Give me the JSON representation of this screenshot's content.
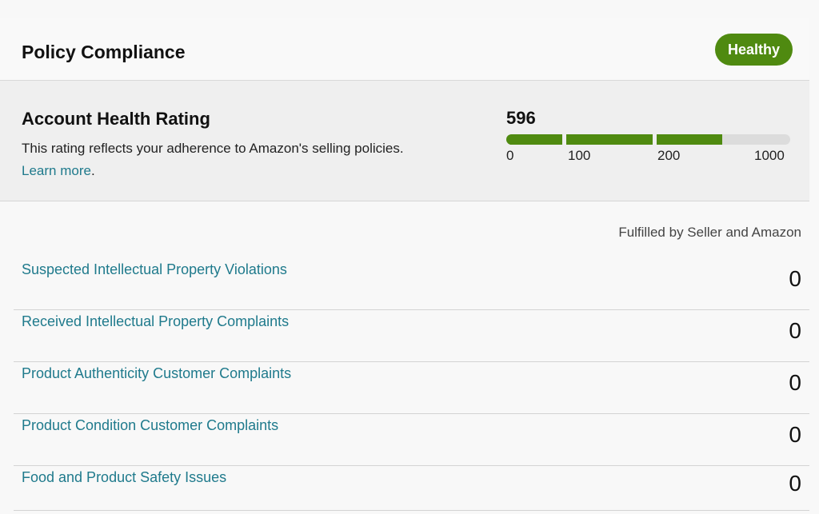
{
  "header": {
    "title": "Policy Compliance",
    "status_badge": "Healthy"
  },
  "rating": {
    "title": "Account Health Rating",
    "description": "This rating reflects your adherence to Amazon's selling policies.",
    "learn_more": "Learn more",
    "score": "596",
    "score_value": 596,
    "ticks": [
      "0",
      "100",
      "200",
      "1000"
    ]
  },
  "metrics": {
    "column_header": "Fulfilled by Seller and Amazon",
    "rows": [
      {
        "label": "Suspected Intellectual Property Violations",
        "value": "0"
      },
      {
        "label": "Received Intellectual Property Complaints",
        "value": "0"
      },
      {
        "label": "Product Authenticity Customer Complaints",
        "value": "0"
      },
      {
        "label": "Product Condition Customer Complaints",
        "value": "0"
      },
      {
        "label": "Food and Product Safety Issues",
        "value": "0"
      }
    ]
  },
  "colors": {
    "accent_green": "#4f8a10",
    "link_teal": "#1f7a8c"
  }
}
